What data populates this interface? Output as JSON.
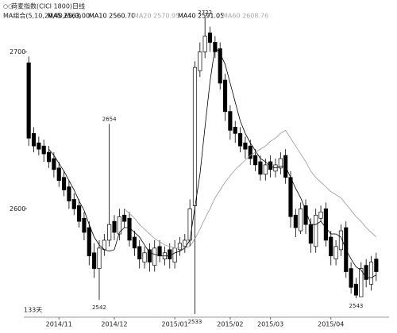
{
  "chart_data": {
    "type": "candlestick",
    "title": "荷麦指数(CICI 1800)日线",
    "ma_title": "MA组合(5,10,20,40,60,0)",
    "ma_legend": [
      {
        "text": "MA5 2563.00",
        "color": "#000000"
      },
      {
        "text": "MA10 2560.70",
        "color": "#000000"
      },
      {
        "text": "MA20 2570.95",
        "color": "#aaaaaa"
      },
      {
        "text": "MA40 2591.05",
        "color": "#000000"
      },
      {
        "text": "MA60 2608.76",
        "color": "#aaaaaa"
      }
    ],
    "period_label": "133天",
    "categories": [
      null,
      null,
      null,
      null,
      null,
      null,
      "2014/11",
      null,
      null,
      null,
      null,
      null,
      null,
      null,
      null,
      null,
      null,
      "2014/12",
      null,
      null,
      null,
      null,
      null,
      null,
      null,
      null,
      null,
      null,
      null,
      "2015/01",
      null,
      null,
      null,
      null,
      null,
      null,
      null,
      null,
      null,
      null,
      "2015/02",
      null,
      null,
      null,
      null,
      null,
      null,
      null,
      "2015/03",
      null,
      null,
      null,
      null,
      null,
      null,
      null,
      null,
      null,
      null,
      null,
      "2015/04",
      null,
      null,
      null,
      null,
      null,
      null,
      null,
      null,
      null
    ],
    "open": [
      2693,
      2648,
      2642,
      2640,
      2636,
      2632,
      2626,
      2620,
      2614,
      2606,
      2602,
      2594,
      2588,
      2572,
      2562,
      2574,
      2580,
      2592,
      2584,
      2596,
      2594,
      2582,
      2576,
      2566,
      2574,
      2564,
      2576,
      2568,
      2574,
      2566,
      2574,
      2576,
      2580,
      2602,
      2688,
      2700,
      2712,
      2706,
      2702,
      2682,
      2662,
      2652,
      2648,
      2642,
      2640,
      2634,
      2630,
      2622,
      2630,
      2624,
      2626,
      2634,
      2620,
      2596,
      2586,
      2602,
      2590,
      2576,
      2594,
      2600,
      2582,
      2568,
      2574,
      2588,
      2562,
      2552,
      2544,
      2564,
      2552,
      2568
    ],
    "high": [
      2697,
      2652,
      2646,
      2644,
      2640,
      2636,
      2630,
      2624,
      2618,
      2610,
      2606,
      2598,
      2592,
      2578,
      2580,
      2584,
      2654,
      2596,
      2600,
      2600,
      2598,
      2586,
      2580,
      2576,
      2578,
      2580,
      2580,
      2576,
      2578,
      2580,
      2582,
      2584,
      2606,
      2694,
      2706,
      2722,
      2716,
      2710,
      2706,
      2686,
      2666,
      2656,
      2652,
      2646,
      2644,
      2638,
      2634,
      2632,
      2634,
      2632,
      2636,
      2638,
      2624,
      2600,
      2604,
      2606,
      2594,
      2600,
      2602,
      2604,
      2586,
      2580,
      2590,
      2592,
      2566,
      2556,
      2566,
      2568,
      2570,
      2572
    ],
    "low": [
      2640,
      2636,
      2634,
      2630,
      2626,
      2620,
      2614,
      2608,
      2600,
      2596,
      2588,
      2580,
      2564,
      2556,
      2542,
      2570,
      2576,
      2580,
      2580,
      2588,
      2576,
      2570,
      2562,
      2562,
      2560,
      2560,
      2566,
      2564,
      2562,
      2562,
      2570,
      2572,
      2576,
      2533,
      2684,
      2696,
      2700,
      2696,
      2676,
      2656,
      2644,
      2642,
      2636,
      2632,
      2628,
      2624,
      2618,
      2618,
      2620,
      2620,
      2622,
      2616,
      2588,
      2582,
      2584,
      2584,
      2572,
      2572,
      2592,
      2576,
      2564,
      2564,
      2570,
      2556,
      2546,
      2543,
      2544,
      2550,
      2548,
      2554
    ],
    "close": [
      2645,
      2640,
      2638,
      2635,
      2630,
      2625,
      2618,
      2612,
      2605,
      2600,
      2592,
      2585,
      2570,
      2562,
      2575,
      2580,
      2590,
      2585,
      2595,
      2592,
      2580,
      2575,
      2568,
      2572,
      2566,
      2575,
      2570,
      2572,
      2568,
      2575,
      2578,
      2580,
      2600,
      2690,
      2700,
      2710,
      2706,
      2700,
      2680,
      2662,
      2650,
      2648,
      2640,
      2638,
      2632,
      2628,
      2622,
      2628,
      2625,
      2628,
      2632,
      2620,
      2595,
      2588,
      2600,
      2590,
      2578,
      2596,
      2598,
      2580,
      2570,
      2576,
      2586,
      2560,
      2550,
      2545,
      2562,
      2555,
      2566,
      2560
    ],
    "series": [
      {
        "color": "#000000",
        "values": [
          null,
          null,
          null,
          null,
          2638,
          2634,
          2629,
          2624,
          2618,
          2612,
          2605,
          2599,
          2590,
          2582,
          2577,
          2574,
          2573,
          2574,
          2585,
          2588,
          2588,
          2585,
          2582,
          2577,
          2572,
          2571,
          2570,
          2570,
          2570,
          2572,
          2573,
          2575,
          2580,
          2601,
          2622,
          2652,
          2681,
          2703,
          2699,
          2692,
          2680,
          2668,
          2656,
          2648,
          2642,
          2637,
          2632,
          2630,
          2627,
          2626,
          2627,
          2627,
          2620,
          2613,
          2607,
          2599,
          2590,
          2590,
          2592,
          2588,
          2584,
          2584,
          2582,
          2574,
          2568,
          2563,
          2561,
          2556,
          2556,
          2558
        ]
      },
      {
        "color": "#999999",
        "values": [
          null,
          null,
          null,
          null,
          null,
          null,
          null,
          null,
          null,
          null,
          null,
          null,
          null,
          null,
          null,
          null,
          null,
          null,
          null,
          2600,
          2597,
          2594,
          2590,
          2587,
          2584,
          2581,
          2579,
          2577,
          2576,
          2575,
          2575,
          2575,
          2576,
          2581,
          2587,
          2594,
          2600,
          2607,
          2612,
          2617,
          2621,
          2625,
          2628,
          2631,
          2634,
          2636,
          2638,
          2640,
          2643,
          2645,
          2648,
          2650,
          2645,
          2640,
          2635,
          2630,
          2624,
          2620,
          2617,
          2614,
          2611,
          2609,
          2607,
          2603,
          2599,
          2595,
          2592,
          2588,
          2585,
          2582
        ]
      }
    ],
    "annotations": [
      {
        "text": "2722",
        "index": 35
      },
      {
        "text": "2654",
        "index": 16
      },
      {
        "text": "2542",
        "index": 14
      },
      {
        "text": "2533",
        "index": 33
      },
      {
        "text": "2543",
        "index": 65
      }
    ],
    "ylim": [
      2531,
      2733
    ],
    "yticks": [
      2600,
      2700
    ]
  }
}
